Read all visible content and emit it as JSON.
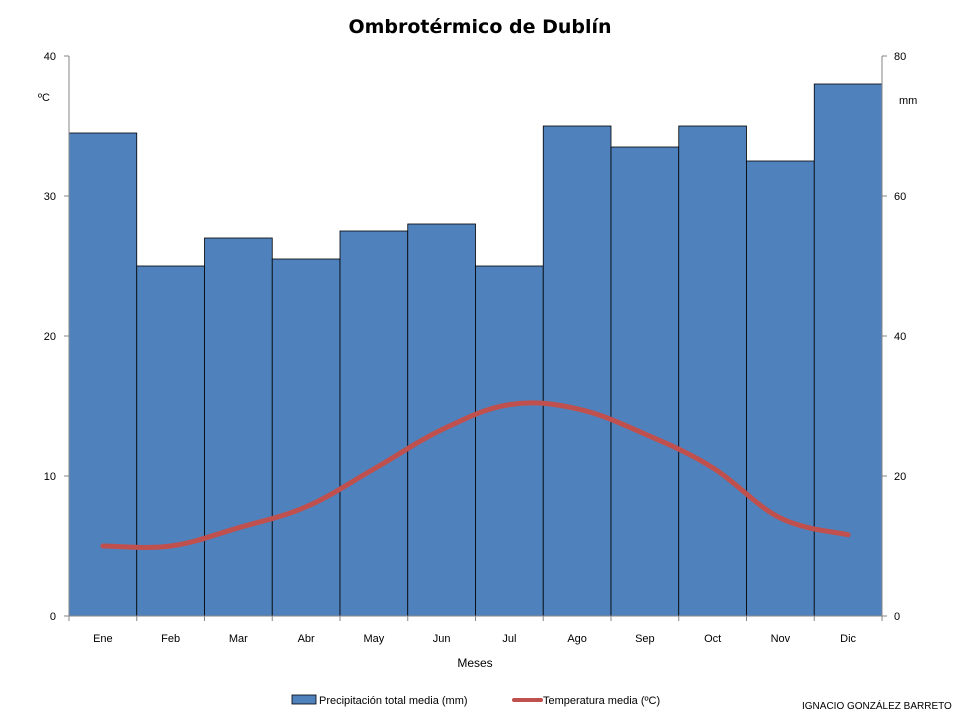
{
  "chart_data": {
    "type": "bar",
    "title": "Ombrotérmico de Dublín",
    "xlabel": "Meses",
    "categories": [
      "Ene",
      "Feb",
      "Mar",
      "Abr",
      "May",
      "Jun",
      "Jul",
      "Ago",
      "Sep",
      "Oct",
      "Nov",
      "Dic"
    ],
    "y_left": {
      "unit": "ºC",
      "ylim": [
        0,
        40
      ],
      "ticks": [
        "0",
        "10",
        "20",
        "30",
        "40"
      ]
    },
    "y_right": {
      "unit": "mm",
      "ylim": [
        0,
        80
      ],
      "ticks": [
        "0",
        "20",
        "40",
        "60",
        "80"
      ]
    },
    "series": [
      {
        "name": "Precipitación total media (mm)",
        "kind": "bar",
        "axis": "right",
        "color": "#4F81BD",
        "values": [
          69,
          50,
          54,
          51,
          55,
          56,
          50,
          70,
          67,
          70,
          65,
          76
        ]
      },
      {
        "name": "Temperatura media (ºC)",
        "kind": "line",
        "axis": "left",
        "color": "#C0504D",
        "values": [
          5.0,
          5.0,
          6.3,
          7.8,
          10.5,
          13.3,
          15.1,
          14.8,
          13.0,
          10.6,
          7.0,
          5.8
        ]
      }
    ],
    "grid": false,
    "legend": "bottom"
  },
  "credit": "IGNACIO GONZÁLEZ BARRETO",
  "colors": {
    "axis": "#868686",
    "bar_edge": "#000000"
  }
}
